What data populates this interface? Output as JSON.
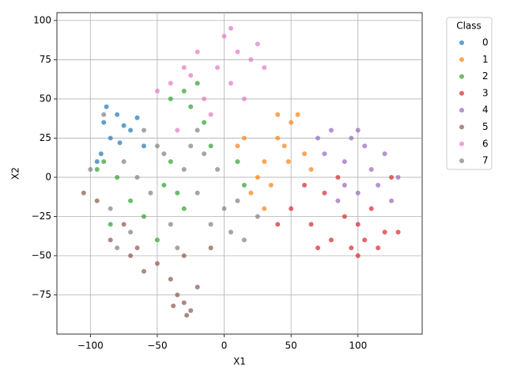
{
  "chart_data": {
    "type": "scatter",
    "xlabel": "X1",
    "ylabel": "X2",
    "xlim": [
      -125,
      148
    ],
    "ylim": [
      -100,
      105
    ],
    "xticks": [
      {
        "value": -100,
        "label": "−100"
      },
      {
        "value": -50,
        "label": "−50"
      },
      0,
      50,
      100
    ],
    "yticks": [
      {
        "value": -75,
        "label": "−75"
      },
      {
        "value": -50,
        "label": "−50"
      },
      {
        "value": -25,
        "label": "−25"
      },
      0,
      25,
      50,
      75,
      100
    ],
    "grid": true,
    "legend_title": "Class",
    "legend_position": "outside-right",
    "series": [
      {
        "name": "0",
        "color": "#1f77b4",
        "x": [
          -90,
          -80,
          -70,
          -95,
          -60,
          -85,
          -88,
          -75,
          -65,
          -92,
          -78
        ],
        "y": [
          35,
          40,
          30,
          10,
          20,
          25,
          45,
          33,
          38,
          15,
          22
        ]
      },
      {
        "name": "1",
        "color": "#ff7f0e",
        "x": [
          30,
          40,
          50,
          25,
          35,
          20,
          60,
          45,
          15,
          55,
          40,
          30,
          65,
          10,
          48
        ],
        "y": [
          10,
          25,
          35,
          0,
          -5,
          -10,
          15,
          20,
          25,
          40,
          40,
          -20,
          5,
          20,
          10
        ]
      },
      {
        "name": "2",
        "color": "#2ca02c",
        "x": [
          -40,
          -30,
          -25,
          -90,
          -80,
          -70,
          -45,
          -35,
          -30,
          -20,
          -10,
          10,
          15,
          -60,
          -85,
          -40,
          -50,
          -95,
          -15
        ],
        "y": [
          50,
          55,
          45,
          10,
          0,
          -15,
          -5,
          -10,
          -20,
          60,
          20,
          10,
          -5,
          -25,
          -30,
          10,
          -40,
          5,
          35
        ]
      },
      {
        "name": "3",
        "color": "#d62728",
        "x": [
          80,
          100,
          120,
          90,
          110,
          70,
          130,
          115,
          60,
          75,
          85,
          100,
          125,
          40,
          50,
          95,
          105,
          65
        ],
        "y": [
          -40,
          -50,
          -35,
          -25,
          -20,
          -45,
          -35,
          -45,
          -5,
          -10,
          0,
          -30,
          0,
          -30,
          -20,
          -45,
          -40,
          -30
        ]
      },
      {
        "name": "4",
        "color": "#9467bd",
        "x": [
          80,
          95,
          90,
          110,
          120,
          75,
          100,
          85,
          130,
          70,
          100,
          115,
          105,
          90,
          125
        ],
        "y": [
          30,
          25,
          10,
          5,
          15,
          15,
          -10,
          -15,
          0,
          25,
          30,
          -5,
          20,
          -5,
          -15
        ]
      },
      {
        "name": "5",
        "color": "#8c564b",
        "x": [
          -30,
          -35,
          -25,
          -40,
          -20,
          -60,
          -105,
          -95,
          -75,
          -65,
          -50,
          -30,
          -85,
          -10,
          -70,
          -28,
          -38
        ],
        "y": [
          -80,
          -75,
          -85,
          -65,
          -70,
          -60,
          -10,
          -15,
          -30,
          -45,
          -55,
          -50,
          -40,
          -45,
          -50,
          -88,
          -82
        ]
      },
      {
        "name": "6",
        "color": "#e377c2",
        "x": [
          0,
          10,
          20,
          -5,
          5,
          -20,
          -30,
          -40,
          -15,
          30,
          15,
          -50,
          -10,
          -35,
          5,
          25,
          -25
        ],
        "y": [
          90,
          80,
          75,
          70,
          60,
          80,
          70,
          60,
          50,
          70,
          50,
          55,
          40,
          30,
          95,
          85,
          65
        ]
      },
      {
        "name": "7",
        "color": "#7f7f7f",
        "x": [
          -90,
          -75,
          -65,
          -55,
          -45,
          -30,
          -20,
          -10,
          0,
          5,
          15,
          -20,
          -35,
          -5,
          -85,
          -60,
          -100,
          25,
          -25,
          10,
          -70,
          -40,
          -80,
          -50,
          -15
        ],
        "y": [
          40,
          10,
          0,
          -10,
          15,
          5,
          -10,
          -30,
          -20,
          -35,
          -40,
          30,
          -45,
          5,
          -20,
          30,
          5,
          -25,
          20,
          -15,
          -35,
          -30,
          -45,
          20,
          15
        ]
      }
    ]
  }
}
